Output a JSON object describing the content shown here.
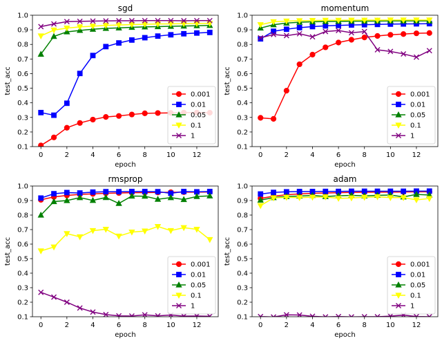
{
  "chart_data": [
    {
      "type": "line",
      "title": "sgd",
      "xlabel": "epoch",
      "ylabel": "test_acc",
      "x": [
        0,
        1,
        2,
        3,
        4,
        5,
        6,
        7,
        8,
        9,
        10,
        11,
        12,
        13
      ],
      "xticks": [
        0,
        2,
        4,
        6,
        8,
        10,
        12
      ],
      "xlim": [
        -0.65,
        13.65
      ],
      "ylim": [
        0.1,
        1.0
      ],
      "yticks": [
        0.1,
        0.2,
        0.3,
        0.4,
        0.5,
        0.6,
        0.7,
        0.8,
        0.9,
        1.0
      ],
      "legend": "lower-right",
      "series": [
        {
          "name": "0.001",
          "color": "#ff0000",
          "marker": "circle",
          "values": [
            0.108,
            0.163,
            0.229,
            0.262,
            0.285,
            0.303,
            0.31,
            0.32,
            0.328,
            0.33,
            0.331,
            0.333,
            0.333,
            0.332
          ]
        },
        {
          "name": "0.01",
          "color": "#0000ff",
          "marker": "square",
          "values": [
            0.333,
            0.315,
            0.397,
            0.601,
            0.724,
            0.785,
            0.81,
            0.83,
            0.846,
            0.857,
            0.866,
            0.873,
            0.878,
            0.882
          ]
        },
        {
          "name": "0.05",
          "color": "#008000",
          "marker": "triangle",
          "values": [
            0.733,
            0.855,
            0.886,
            0.896,
            0.904,
            0.91,
            0.913,
            0.917,
            0.92,
            0.922,
            0.924,
            0.926,
            0.928,
            0.93
          ]
        },
        {
          "name": "0.1",
          "color": "#ffff00",
          "marker": "triangle-down",
          "values": [
            0.858,
            0.898,
            0.912,
            0.92,
            0.925,
            0.93,
            0.933,
            0.936,
            0.938,
            0.94,
            0.941,
            0.942,
            0.943,
            0.944
          ]
        },
        {
          "name": "1",
          "color": "#800080",
          "marker": "x",
          "values": [
            0.922,
            0.94,
            0.956,
            0.958,
            0.96,
            0.961,
            0.962,
            0.962,
            0.963,
            0.963,
            0.963,
            0.962,
            0.963,
            0.963
          ]
        }
      ]
    },
    {
      "type": "line",
      "title": "momentum",
      "xlabel": "epoch",
      "ylabel": "test_acc",
      "x": [
        0,
        1,
        2,
        3,
        4,
        5,
        6,
        7,
        8,
        9,
        10,
        11,
        12,
        13
      ],
      "xticks": [
        0,
        2,
        4,
        6,
        8,
        10,
        12
      ],
      "xlim": [
        -0.65,
        13.65
      ],
      "ylim": [
        0.1,
        1.0
      ],
      "yticks": [
        0.1,
        0.2,
        0.3,
        0.4,
        0.5,
        0.6,
        0.7,
        0.8,
        0.9,
        1.0
      ],
      "legend": "lower-right",
      "series": [
        {
          "name": "0.001",
          "color": "#ff0000",
          "marker": "circle",
          "values": [
            0.297,
            0.29,
            0.483,
            0.664,
            0.73,
            0.78,
            0.813,
            0.832,
            0.848,
            0.858,
            0.866,
            0.871,
            0.876,
            0.878
          ]
        },
        {
          "name": "0.01",
          "color": "#0000ff",
          "marker": "square",
          "values": [
            0.838,
            0.89,
            0.904,
            0.915,
            0.922,
            0.927,
            0.93,
            0.933,
            0.935,
            0.937,
            0.939,
            0.94,
            0.941,
            0.942
          ]
        },
        {
          "name": "0.05",
          "color": "#008000",
          "marker": "triangle",
          "values": [
            0.912,
            0.935,
            0.946,
            0.952,
            0.955,
            0.957,
            0.958,
            0.959,
            0.96,
            0.96,
            0.961,
            0.961,
            0.961,
            0.961
          ]
        },
        {
          "name": "0.1",
          "color": "#ffff00",
          "marker": "triangle-down",
          "values": [
            0.935,
            0.955,
            0.96,
            0.962,
            0.964,
            0.965,
            0.965,
            0.966,
            0.966,
            0.966,
            0.967,
            0.967,
            0.967,
            0.967
          ]
        },
        {
          "name": "1",
          "color": "#800080",
          "marker": "x",
          "values": [
            0.845,
            0.868,
            0.86,
            0.873,
            0.852,
            0.888,
            0.895,
            0.88,
            0.888,
            0.763,
            0.752,
            0.735,
            0.713,
            0.757
          ]
        }
      ]
    },
    {
      "type": "line",
      "title": "rmsprop",
      "xlabel": "epoch",
      "ylabel": "test_acc",
      "x": [
        0,
        1,
        2,
        3,
        4,
        5,
        6,
        7,
        8,
        9,
        10,
        11,
        12,
        13
      ],
      "xticks": [
        0,
        2,
        4,
        6,
        8,
        10,
        12
      ],
      "xlim": [
        -0.65,
        13.65
      ],
      "ylim": [
        0.1,
        1.0
      ],
      "yticks": [
        0.1,
        0.2,
        0.3,
        0.4,
        0.5,
        0.6,
        0.7,
        0.8,
        0.9,
        1.0
      ],
      "legend": "lower-right",
      "series": [
        {
          "name": "0.001",
          "color": "#ff0000",
          "marker": "circle",
          "values": [
            0.905,
            0.925,
            0.935,
            0.942,
            0.946,
            0.95,
            0.952,
            0.954,
            0.955,
            0.956,
            0.957,
            0.958,
            0.958,
            0.959
          ]
        },
        {
          "name": "0.01",
          "color": "#0000ff",
          "marker": "square",
          "values": [
            0.917,
            0.947,
            0.955,
            0.952,
            0.958,
            0.961,
            0.961,
            0.962,
            0.962,
            0.961,
            0.95,
            0.962,
            0.96,
            0.962
          ]
        },
        {
          "name": "0.05",
          "color": "#008000",
          "marker": "triangle",
          "values": [
            0.8,
            0.893,
            0.9,
            0.92,
            0.901,
            0.921,
            0.88,
            0.931,
            0.93,
            0.909,
            0.92,
            0.907,
            0.928,
            0.932
          ]
        },
        {
          "name": "0.1",
          "color": "#ffff00",
          "marker": "triangle-down",
          "values": [
            0.553,
            0.58,
            0.672,
            0.65,
            0.693,
            0.702,
            0.655,
            0.683,
            0.69,
            0.721,
            0.693,
            0.713,
            0.702,
            0.631
          ]
        },
        {
          "name": "1",
          "color": "#800080",
          "marker": "x",
          "values": [
            0.268,
            0.235,
            0.2,
            0.16,
            0.132,
            0.115,
            0.106,
            0.105,
            0.113,
            0.106,
            0.112,
            0.104,
            0.105,
            0.103
          ]
        }
      ]
    },
    {
      "type": "line",
      "title": "adam",
      "xlabel": "epoch",
      "ylabel": "test_acc",
      "x": [
        0,
        1,
        2,
        3,
        4,
        5,
        6,
        7,
        8,
        9,
        10,
        11,
        12,
        13
      ],
      "xticks": [
        0,
        2,
        4,
        6,
        8,
        10,
        12
      ],
      "xlim": [
        -0.65,
        13.65
      ],
      "ylim": [
        0.1,
        1.0
      ],
      "yticks": [
        0.1,
        0.2,
        0.3,
        0.4,
        0.5,
        0.6,
        0.7,
        0.8,
        0.9,
        1.0
      ],
      "legend": "lower-right",
      "series": [
        {
          "name": "0.001",
          "color": "#ff0000",
          "marker": "circle",
          "values": [
            0.915,
            0.93,
            0.94,
            0.946,
            0.95,
            0.952,
            0.954,
            0.956,
            0.957,
            0.958,
            0.958,
            0.959,
            0.96,
            0.96
          ]
        },
        {
          "name": "0.01",
          "color": "#0000ff",
          "marker": "square",
          "values": [
            0.945,
            0.956,
            0.96,
            0.962,
            0.962,
            0.963,
            0.963,
            0.964,
            0.964,
            0.964,
            0.964,
            0.964,
            0.965,
            0.965
          ]
        },
        {
          "name": "0.05",
          "color": "#008000",
          "marker": "triangle",
          "values": [
            0.903,
            0.92,
            0.928,
            0.931,
            0.935,
            0.928,
            0.933,
            0.936,
            0.932,
            0.936,
            0.938,
            0.925,
            0.942,
            0.938
          ]
        },
        {
          "name": "0.1",
          "color": "#ffff00",
          "marker": "triangle-down",
          "values": [
            0.865,
            0.918,
            0.922,
            0.92,
            0.923,
            0.925,
            0.915,
            0.918,
            0.922,
            0.926,
            0.92,
            0.92,
            0.905,
            0.914
          ]
        },
        {
          "name": "1",
          "color": "#800080",
          "marker": "x",
          "values": [
            0.101,
            0.098,
            0.113,
            0.112,
            0.103,
            0.099,
            0.101,
            0.099,
            0.1,
            0.1,
            0.104,
            0.111,
            0.101,
            0.1
          ]
        }
      ]
    }
  ]
}
